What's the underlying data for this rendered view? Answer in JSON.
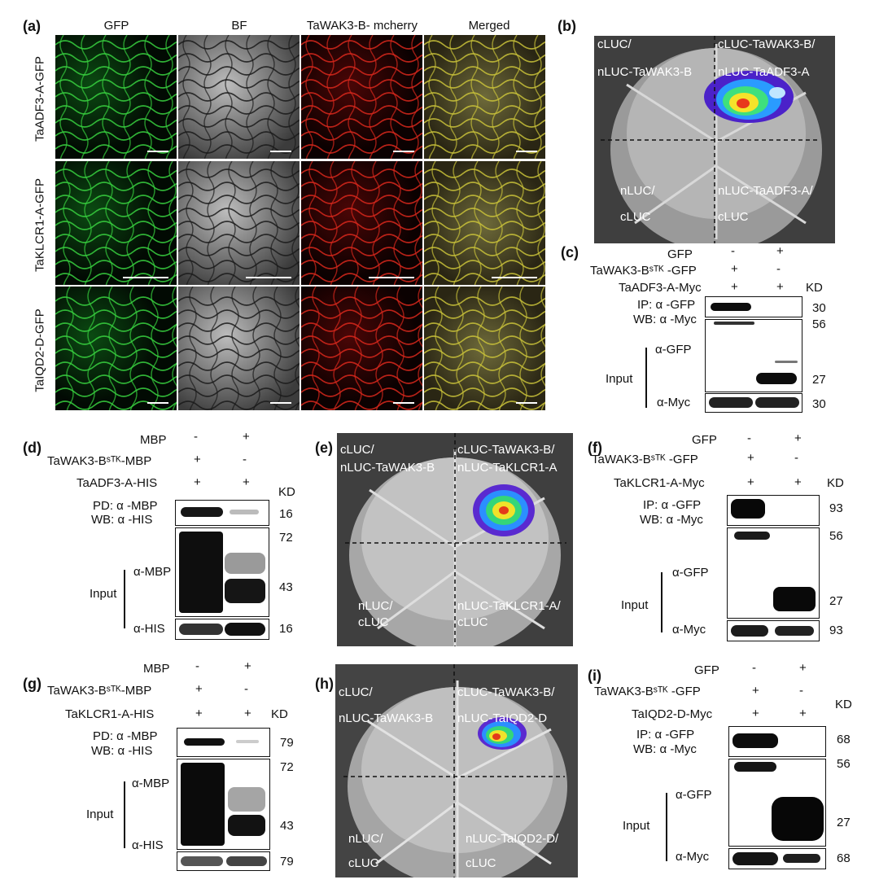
{
  "panels": {
    "a": "(a)",
    "b": "(b)",
    "c": "(c)",
    "d": "(d)",
    "e": "(e)",
    "f": "(f)",
    "g": "(g)",
    "h": "(h)",
    "i": "(i)"
  },
  "a": {
    "columns": [
      "GFP",
      "BF",
      "TaWAK3-B- mcherry",
      "Merged"
    ],
    "rows": [
      "TaADF3-A-GFP",
      "TaKLCR1-A-GFP",
      "TaIQD2-D-GFP"
    ],
    "scalebar": "100 μm"
  },
  "b": {
    "q1": [
      "cLUC/",
      "nLUC-TaWAK3-B"
    ],
    "q2": [
      "cLUC-TaWAK3-B/",
      "nLUC-TaADF3-A"
    ],
    "q3": [
      "nLUC/",
      "cLUC"
    ],
    "q4": [
      "nLUC-TaADF3-A/",
      "cLUC"
    ]
  },
  "c": {
    "rows": [
      {
        "label": "GFP",
        "v": [
          "-",
          "+"
        ]
      },
      {
        "label": "TaWAK3-Bˢᵀᴷ -GFP",
        "v": [
          "+",
          "-"
        ]
      },
      {
        "label": "TaADF3-A-Myc",
        "v": [
          "+",
          "+"
        ]
      }
    ],
    "kd": "KD",
    "ip": "IP: α -GFP",
    "wb": "WB: α -Myc",
    "input": "Input",
    "agfp": "α-GFP",
    "amyc": "α-Myc",
    "markers": [
      "30",
      "56",
      "27",
      "30"
    ]
  },
  "d": {
    "rows": [
      {
        "label": "MBP",
        "v": [
          "-",
          "+"
        ]
      },
      {
        "label": "TaWAK3-Bˢᵀᴷ-MBP",
        "v": [
          "+",
          "-"
        ]
      },
      {
        "label": "TaADF3-A-HIS",
        "v": [
          "+",
          "+"
        ]
      }
    ],
    "kd": "KD",
    "pd": "PD: α -MBP",
    "wb": "WB: α -HIS",
    "input": "Input",
    "ambp": "α-MBP",
    "ahis": "α-HIS",
    "markers": [
      "16",
      "72",
      "43",
      "16"
    ]
  },
  "e": {
    "q1": [
      "cLUC/",
      "nLUC-TaWAK3-B"
    ],
    "q2": [
      "cLUC-TaWAK3-B/",
      "nLUC-TaKLCR1-A"
    ],
    "q3": [
      "nLUC/",
      "cLUC"
    ],
    "q4": [
      "nLUC-TaKLCR1-A/",
      "cLUC"
    ]
  },
  "f": {
    "rows": [
      {
        "label": "GFP",
        "v": [
          "-",
          "+"
        ]
      },
      {
        "label": "TaWAK3-Bˢᵀᴷ -GFP",
        "v": [
          "+",
          "-"
        ]
      },
      {
        "label": "TaKLCR1-A-Myc",
        "v": [
          "+",
          "+"
        ]
      }
    ],
    "kd": "KD",
    "ip": "IP: α -GFP",
    "wb": "WB: α -Myc",
    "input": "Input",
    "agfp": "α-GFP",
    "amyc": "α-Myc",
    "markers": [
      "93",
      "56",
      "27",
      "93"
    ]
  },
  "g": {
    "rows": [
      {
        "label": "MBP",
        "v": [
          "-",
          "+"
        ]
      },
      {
        "label": "TaWAK3-Bˢᵀᴷ-MBP",
        "v": [
          "+",
          "-"
        ]
      },
      {
        "label": "TaKLCR1-A-HIS",
        "v": [
          "+",
          "+"
        ]
      }
    ],
    "kd": "KD",
    "pd": "PD: α -MBP",
    "wb": "WB: α -HIS",
    "input": "Input",
    "ambp": "α-MBP",
    "ahis": "α-HIS",
    "markers": [
      "79",
      "72",
      "43",
      "79"
    ]
  },
  "h": {
    "q1": [
      "cLUC/",
      "nLUC-TaWAK3-B"
    ],
    "q2": [
      "cLUC-TaWAK3-B/",
      "nLUC-TaIQD2-D"
    ],
    "q3": [
      "nLUC/",
      "cLUC"
    ],
    "q4": [
      "nLUC-TaIQD2-D/",
      "cLUC"
    ]
  },
  "i": {
    "rows": [
      {
        "label": "GFP",
        "v": [
          "-",
          "+"
        ]
      },
      {
        "label": "TaWAK3-Bˢᵀᴷ -GFP",
        "v": [
          "+",
          "-"
        ]
      },
      {
        "label": "TaIQD2-D-Myc",
        "v": [
          "+",
          "+"
        ]
      }
    ],
    "kd": "KD",
    "ip": "IP: α -GFP",
    "wb": "WB: α -Myc",
    "input": "Input",
    "agfp": "α-GFP",
    "amyc": "α-Myc",
    "markers": [
      "68",
      "56",
      "27",
      "68"
    ]
  }
}
